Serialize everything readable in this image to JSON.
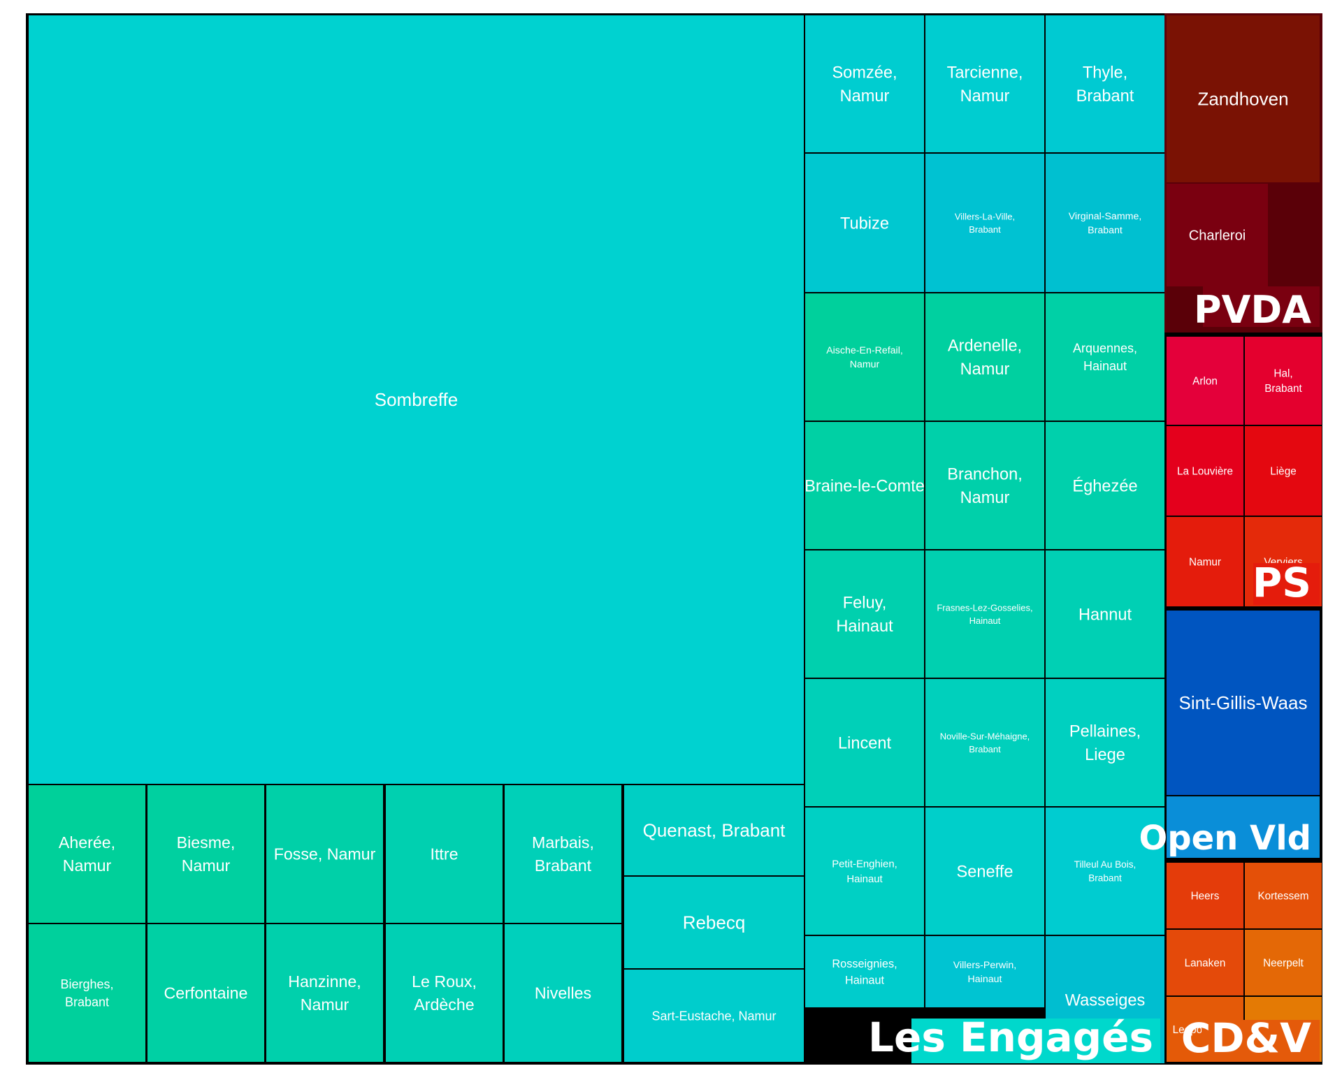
{
  "chart_data": {
    "type": "treemap",
    "title": "",
    "groups": [
      {
        "name": "Les Engagés",
        "color": "#00d0c0",
        "items": [
          {
            "label": "Sombreffe",
            "value": 4088,
            "color": "#00d2d0"
          },
          {
            "label": "Somzée, Namur",
            "value": 80,
            "color": "#00cdd0"
          },
          {
            "label": "Tarcienne, Namur",
            "value": 80,
            "color": "#00cdd0"
          },
          {
            "label": "Thyle, Brabant",
            "value": 80,
            "color": "#00cad2"
          },
          {
            "label": "Tubize",
            "value": 80,
            "color": "#00c8d0"
          },
          {
            "label": "Villers-La-Ville, Brabant",
            "value": 80,
            "color": "#00c2d2"
          },
          {
            "label": "Virginal-Samme, Brabant",
            "value": 80,
            "color": "#00c0d0"
          },
          {
            "label": "Aische-En-Refail, Namur",
            "value": 74,
            "color": "#00d09c"
          },
          {
            "label": "Ardenelle, Namur",
            "value": 74,
            "color": "#00d0a0"
          },
          {
            "label": "Arquennes, Hainaut",
            "value": 74,
            "color": "#00d0a6"
          },
          {
            "label": "Braine-le-Comte",
            "value": 74,
            "color": "#00d0a4"
          },
          {
            "label": "Branchon, Namur",
            "value": 74,
            "color": "#00d0aa"
          },
          {
            "label": "Éghezée",
            "value": 74,
            "color": "#00d0ac"
          },
          {
            "label": "Feluy, Hainaut",
            "value": 74,
            "color": "#00d0ae"
          },
          {
            "label": "Frasnes-Lez-Gosselies, Hainaut",
            "value": 74,
            "color": "#00d0b0"
          },
          {
            "label": "Hannut",
            "value": 74,
            "color": "#00d0b4"
          },
          {
            "label": "Lincent",
            "value": 74,
            "color": "#00d0b8"
          },
          {
            "label": "Noville-Sur-Méhaigne, Brabant",
            "value": 74,
            "color": "#00d0bc"
          },
          {
            "label": "Pellaines, Liege",
            "value": 74,
            "color": "#00d0c0"
          },
          {
            "label": "Petit-Enghien, Hainaut",
            "value": 74,
            "color": "#00d0c4"
          },
          {
            "label": "Seneffe",
            "value": 74,
            "color": "#00cfca"
          },
          {
            "label": "Tilleul Au Bois, Brabant",
            "value": 74,
            "color": "#00ccd0"
          },
          {
            "label": "Rosseignies, Hainaut",
            "value": 74,
            "color": "#00cccc"
          },
          {
            "label": "Villers-Perwin, Hainaut",
            "value": 74,
            "color": "#00c4d2"
          },
          {
            "label": "Wasseiges",
            "value": 74,
            "color": "#00bed0"
          },
          {
            "label": "Aherée, Namur",
            "value": 74,
            "color": "#00d09a"
          },
          {
            "label": "Biesme, Namur",
            "value": 74,
            "color": "#00d0a0"
          },
          {
            "label": "Fosse, Namur",
            "value": 74,
            "color": "#00d0a8"
          },
          {
            "label": "Ittre",
            "value": 74,
            "color": "#00d0b0"
          },
          {
            "label": "Marbais, Brabant",
            "value": 74,
            "color": "#00d0b8"
          },
          {
            "label": "Bierghes, Brabant",
            "value": 74,
            "color": "#00d09c"
          },
          {
            "label": "Cerfontaine",
            "value": 74,
            "color": "#00d0a4"
          },
          {
            "label": "Hanzinne, Namur",
            "value": 74,
            "color": "#00d0ac"
          },
          {
            "label": "Le Roux, Ardèche",
            "value": 74,
            "color": "#00d0b4"
          },
          {
            "label": "Nivelles",
            "value": 74,
            "color": "#00d0bc"
          },
          {
            "label": "Quenast, Brabant",
            "value": 74,
            "color": "#00cfc4"
          },
          {
            "label": "Rebecq",
            "value": 74,
            "color": "#00cfc8"
          },
          {
            "label": "Sart-Eustache, Namur",
            "value": 74,
            "color": "#00cdcc"
          }
        ]
      },
      {
        "name": "PVDA",
        "color": "#7a0010",
        "items": [
          {
            "label": "Zandhoven",
            "value": 160,
            "color": "#7a1204"
          },
          {
            "label": "Charleroi",
            "value": 100,
            "color": "#7a0010"
          }
        ]
      },
      {
        "name": "PS",
        "color": "#e40020",
        "items": [
          {
            "label": "Arlon",
            "value": 70,
            "color": "#e4003a"
          },
          {
            "label": "Hal, Brabant",
            "value": 70,
            "color": "#e4002e"
          },
          {
            "label": "La Louvière",
            "value": 70,
            "color": "#e4001c"
          },
          {
            "label": "Liège",
            "value": 70,
            "color": "#e40810"
          },
          {
            "label": "Namur",
            "value": 70,
            "color": "#e41c0c"
          },
          {
            "label": "Verviers",
            "value": 70,
            "color": "#e42a0a"
          }
        ]
      },
      {
        "name": "Open Vld",
        "color": "#0a7fcf",
        "items": [
          {
            "label": "Sint-Gillis-Waas",
            "value": 260,
            "color": "#0055c0"
          }
        ]
      },
      {
        "name": "CD&V",
        "color": "#e45a0a",
        "items": [
          {
            "label": "Heers",
            "value": 70,
            "color": "#e43c0a"
          },
          {
            "label": "Kortessem",
            "value": 70,
            "color": "#e45008"
          },
          {
            "label": "Lanaken",
            "value": 70,
            "color": "#e44a0a"
          },
          {
            "label": "Neerpelt",
            "value": 70,
            "color": "#e46806"
          },
          {
            "label": "Leopoldsburg",
            "value": 70,
            "color": "#e45a08"
          },
          {
            "label": "",
            "value": 70,
            "color": "#e47a04"
          }
        ]
      }
    ]
  }
}
